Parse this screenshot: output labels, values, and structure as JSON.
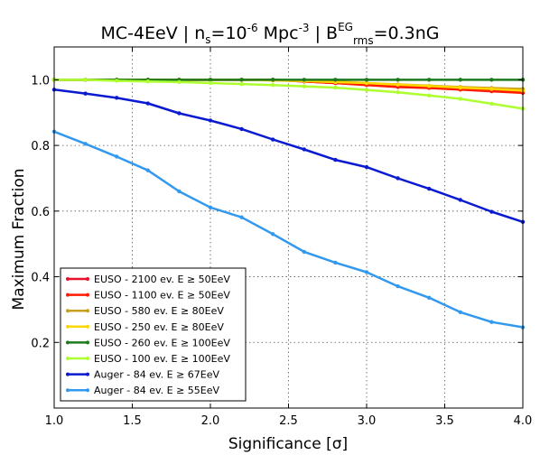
{
  "chart_data": {
    "type": "line",
    "title": {
      "prefix": "MC-4EeV | n",
      "n_sub": "s",
      "eq1": "=10",
      "exp": "-6",
      "unit": " Mpc",
      "unit_exp": "-3",
      "sep": " | B",
      "b_sup": "EG",
      "b_sub": "rms",
      "eq2": "=0.3nG"
    },
    "xlabel": "Significance [σ]",
    "ylabel": "Maximum Fraction",
    "xlim": [
      1.0,
      4.0
    ],
    "ylim": [
      0.0,
      1.1
    ],
    "xticks": [
      "1.0",
      "1.5",
      "2.0",
      "2.5",
      "3.0",
      "3.5",
      "4.0"
    ],
    "yticks": [
      "0.2",
      "0.4",
      "0.6",
      "0.8",
      "1.0"
    ],
    "grid": true,
    "legend_position": "bottom-left",
    "x": [
      1.0,
      1.2,
      1.4,
      1.6,
      1.8,
      2.0,
      2.2,
      2.4,
      2.6,
      2.8,
      3.0,
      3.2,
      3.4,
      3.6,
      3.8,
      4.0
    ],
    "series": [
      {
        "name": "EUSO - 2100 ev. E ≥ 50EeV",
        "color": "#e8112d",
        "values": [
          1.0,
          1.0,
          1.0,
          1.0,
          1.0,
          1.0,
          1.0,
          1.0,
          0.995,
          0.99,
          0.985,
          0.98,
          0.977,
          0.972,
          0.967,
          0.962
        ]
      },
      {
        "name": "EUSO - 1100 ev. E ≥ 50EeV",
        "color": "#ff1a00",
        "values": [
          1.0,
          1.0,
          1.0,
          1.0,
          1.0,
          1.0,
          1.0,
          1.0,
          0.995,
          0.99,
          0.984,
          0.978,
          0.975,
          0.97,
          0.965,
          0.96
        ]
      },
      {
        "name": "EUSO - 580 ev. E ≥ 80EeV",
        "color": "#c8a020",
        "values": [
          1.0,
          1.0,
          1.0,
          1.0,
          1.0,
          1.0,
          1.0,
          1.0,
          0.998,
          0.995,
          0.99,
          0.986,
          0.982,
          0.978,
          0.975,
          0.972
        ]
      },
      {
        "name": "EUSO - 250 ev. E ≥ 80EeV",
        "color": "#ffd700",
        "values": [
          1.0,
          1.0,
          1.0,
          1.0,
          1.0,
          1.0,
          1.0,
          0.998,
          0.996,
          0.993,
          0.99,
          0.985,
          0.981,
          0.976,
          0.972,
          0.967
        ]
      },
      {
        "name": "EUSO - 260 ev. E ≥ 100EeV",
        "color": "#1e7a1e",
        "values": [
          1.0,
          1.0,
          1.0,
          1.0,
          1.0,
          1.0,
          1.0,
          1.0,
          1.0,
          1.0,
          1.0,
          1.0,
          1.0,
          1.0,
          1.0,
          1.0
        ]
      },
      {
        "name": "EUSO - 100 ev. E ≥ 100EeV",
        "color": "#adff2f",
        "values": [
          1.0,
          1.0,
          0.997,
          0.995,
          0.993,
          0.99,
          0.987,
          0.984,
          0.98,
          0.976,
          0.969,
          0.962,
          0.952,
          0.942,
          0.927,
          0.912
        ]
      },
      {
        "name": "Auger - 84 ev. E ≥ 67EeV",
        "color": "#0a1ad1",
        "values": [
          0.97,
          0.958,
          0.945,
          0.928,
          0.898,
          0.876,
          0.85,
          0.818,
          0.788,
          0.756,
          0.734,
          0.7,
          0.668,
          0.634,
          0.598,
          0.567
        ]
      },
      {
        "name": "Auger - 84 ev. E ≥ 55EeV",
        "color": "#3399ee",
        "values": [
          0.842,
          0.805,
          0.766,
          0.724,
          0.66,
          0.611,
          0.581,
          0.53,
          0.476,
          0.443,
          0.414,
          0.371,
          0.336,
          0.292,
          0.262,
          0.246
        ]
      }
    ]
  }
}
